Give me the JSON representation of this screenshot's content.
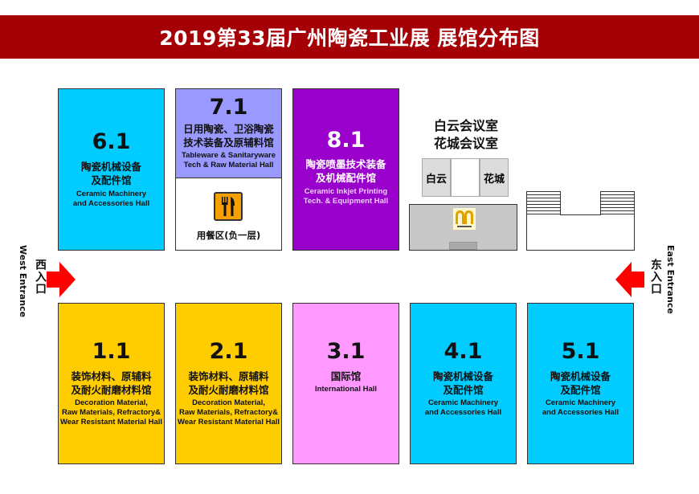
{
  "title": "2019第33届广州陶瓷工业展  展馆分布图",
  "colors": {
    "title_bar": "#a50005",
    "cyan": "#00ccff",
    "lavender": "#9999ff",
    "purple": "#9900cc",
    "pink": "#ff99ff",
    "yellow": "#ffcc00",
    "arrow": "#ff0000"
  },
  "halls_top": {
    "h61": {
      "num": "6.1",
      "cn": [
        "陶瓷机械设备",
        "及配件馆"
      ],
      "en": [
        "Ceramic Machinery",
        "and Accessories Hall"
      ]
    },
    "h71": {
      "num": "7.1",
      "cn": [
        "日用陶瓷、卫浴陶瓷",
        "技术装备及原辅料馆"
      ],
      "en": [
        "Tableware & Sanitaryware",
        "Tech & Raw Material Hall"
      ],
      "dining_icon": "fork-knife-icon",
      "dining": "用餐区(负一层)"
    },
    "h81": {
      "num": "8.1",
      "cn": [
        "陶瓷喷墨技术装备",
        "及机械配件馆"
      ],
      "en": [
        "Ceramic Inkjet Printing",
        "Tech. & Equipment Hall"
      ]
    }
  },
  "meeting": {
    "title": [
      "白云会议室",
      "花城会议室"
    ],
    "room_left": "白云",
    "room_right": "花城",
    "logo": "McDonald's",
    "logo_slogan": "i'm lovin' it"
  },
  "halls_bottom": [
    {
      "num": "1.1",
      "cn": [
        "装饰材料、原辅料",
        "及耐火耐磨材料馆"
      ],
      "en": [
        "Decoration Material,",
        "Raw Materials, Refractory&",
        "Wear Resistant Material Hall"
      ]
    },
    {
      "num": "2.1",
      "cn": [
        "装饰材料、原辅料",
        "及耐火耐磨材料馆"
      ],
      "en": [
        "Decoration Material,",
        "Raw Materials, Refractory&",
        "Wear Resistant Material Hall"
      ]
    },
    {
      "num": "3.1",
      "cn": [
        "国际馆"
      ],
      "en": [
        "International  Hall"
      ]
    },
    {
      "num": "4.1",
      "cn": [
        "陶瓷机械设备",
        "及配件馆"
      ],
      "en": [
        "Ceramic Machinery",
        "and Accessories Hall"
      ]
    },
    {
      "num": "5.1",
      "cn": [
        "陶瓷机械设备",
        "及配件馆"
      ],
      "en": [
        "Ceramic Machinery",
        "and Accessories Hall"
      ]
    }
  ],
  "entrances": {
    "west_cn": "西入口",
    "west_en": "West Entrance",
    "east_cn": "东入口",
    "east_en": "East Entrance"
  }
}
